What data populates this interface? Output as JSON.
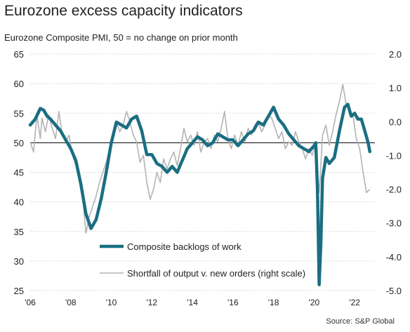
{
  "title": "Eurozone excess capacity indicators",
  "subtitle": "Eurozone Composite PMI, 50 = no change on prior month",
  "source": "Source: S&P Global",
  "colors": {
    "backlogs": "#1a6e82",
    "shortfall": "#b3b3b3",
    "grid": "#d9d9d9",
    "refline": "#000000"
  },
  "chart_data": {
    "type": "line",
    "x_axis": {
      "min": "2006-01",
      "max": "2023-01",
      "ticks": [
        "'06",
        "'08",
        "'10",
        "'12",
        "'14",
        "'16",
        "'18",
        "'20",
        "'22"
      ],
      "tick_years": [
        2006,
        2008,
        2010,
        2012,
        2014,
        2016,
        2018,
        2020,
        2022
      ]
    },
    "y_left": {
      "min": 25,
      "max": 65,
      "ticks": [
        25,
        30,
        35,
        40,
        45,
        50,
        55,
        60,
        65
      ]
    },
    "y_right": {
      "min": -5.0,
      "max": 2.0,
      "ticks": [
        "-5.0",
        "-4.0",
        "-3.0",
        "-2.0",
        "-1.0",
        "0.0",
        "1.0",
        "2.0"
      ]
    },
    "reference_line": 50,
    "grid": "horizontal-dotted",
    "legend_position": "bottom-left-inside",
    "series": [
      {
        "name": "Composite backlogs of work",
        "axis": "left",
        "points": [
          [
            "2006-01",
            53.0
          ],
          [
            "2006-04",
            54.0
          ],
          [
            "2006-07",
            55.8
          ],
          [
            "2006-09",
            55.5
          ],
          [
            "2006-11",
            54.5
          ],
          [
            "2007-01",
            54.0
          ],
          [
            "2007-04",
            53.0
          ],
          [
            "2007-07",
            52.0
          ],
          [
            "2007-10",
            50.5
          ],
          [
            "2008-01",
            49.0
          ],
          [
            "2008-04",
            47.0
          ],
          [
            "2008-07",
            43.0
          ],
          [
            "2008-10",
            38.0
          ],
          [
            "2009-01",
            35.5
          ],
          [
            "2009-04",
            37.0
          ],
          [
            "2009-07",
            40.5
          ],
          [
            "2009-10",
            45.0
          ],
          [
            "2010-01",
            50.0
          ],
          [
            "2010-04",
            53.5
          ],
          [
            "2010-07",
            53.0
          ],
          [
            "2010-10",
            52.5
          ],
          [
            "2011-01",
            54.0
          ],
          [
            "2011-04",
            54.5
          ],
          [
            "2011-07",
            52.0
          ],
          [
            "2011-10",
            48.0
          ],
          [
            "2012-01",
            48.0
          ],
          [
            "2012-04",
            46.5
          ],
          [
            "2012-07",
            46.0
          ],
          [
            "2012-10",
            45.0
          ],
          [
            "2013-01",
            46.0
          ],
          [
            "2013-04",
            45.0
          ],
          [
            "2013-07",
            47.0
          ],
          [
            "2013-10",
            49.0
          ],
          [
            "2014-01",
            50.0
          ],
          [
            "2014-04",
            51.0
          ],
          [
            "2014-07",
            50.5
          ],
          [
            "2014-10",
            49.5
          ],
          [
            "2015-01",
            50.0
          ],
          [
            "2015-04",
            51.5
          ],
          [
            "2015-07",
            51.0
          ],
          [
            "2015-10",
            50.5
          ],
          [
            "2016-01",
            50.5
          ],
          [
            "2016-04",
            49.5
          ],
          [
            "2016-07",
            50.5
          ],
          [
            "2016-10",
            51.5
          ],
          [
            "2017-01",
            52.0
          ],
          [
            "2017-04",
            53.5
          ],
          [
            "2017-07",
            53.0
          ],
          [
            "2017-10",
            54.5
          ],
          [
            "2018-01",
            56.0
          ],
          [
            "2018-04",
            54.0
          ],
          [
            "2018-07",
            53.0
          ],
          [
            "2018-10",
            51.5
          ],
          [
            "2019-01",
            50.5
          ],
          [
            "2019-04",
            49.5
          ],
          [
            "2019-07",
            49.0
          ],
          [
            "2019-10",
            48.5
          ],
          [
            "2020-01",
            49.5
          ],
          [
            "2020-02",
            50.0
          ],
          [
            "2020-03",
            42.0
          ],
          [
            "2020-04",
            26.0
          ],
          [
            "2020-05",
            33.0
          ],
          [
            "2020-06",
            44.0
          ],
          [
            "2020-08",
            47.5
          ],
          [
            "2020-10",
            46.5
          ],
          [
            "2021-01",
            47.5
          ],
          [
            "2021-04",
            52.0
          ],
          [
            "2021-07",
            56.0
          ],
          [
            "2021-09",
            56.5
          ],
          [
            "2021-11",
            54.5
          ],
          [
            "2022-01",
            55.0
          ],
          [
            "2022-03",
            54.0
          ],
          [
            "2022-05",
            54.0
          ],
          [
            "2022-07",
            52.0
          ],
          [
            "2022-09",
            50.0
          ],
          [
            "2022-10",
            48.5
          ]
        ]
      },
      {
        "name": "Shortfall of output v. new orders (right scale)",
        "axis": "right",
        "points": [
          [
            "2006-01",
            -0.6
          ],
          [
            "2006-03",
            -0.9
          ],
          [
            "2006-05",
            0.2
          ],
          [
            "2006-07",
            -0.5
          ],
          [
            "2006-08",
            0.1
          ],
          [
            "2006-10",
            -0.3
          ],
          [
            "2006-12",
            0.2
          ],
          [
            "2007-02",
            -0.2
          ],
          [
            "2007-04",
            -0.5
          ],
          [
            "2007-06",
            0.3
          ],
          [
            "2007-08",
            -0.4
          ],
          [
            "2007-10",
            -0.6
          ],
          [
            "2007-12",
            -0.4
          ],
          [
            "2008-02",
            -1.0
          ],
          [
            "2008-04",
            -1.3
          ],
          [
            "2008-06",
            -1.5
          ],
          [
            "2008-08",
            -2.2
          ],
          [
            "2008-10",
            -3.3
          ],
          [
            "2008-12",
            -2.8
          ],
          [
            "2009-02",
            -2.5
          ],
          [
            "2009-04",
            -2.2
          ],
          [
            "2009-06",
            -1.8
          ],
          [
            "2009-08",
            -1.5
          ],
          [
            "2009-10",
            -1.2
          ],
          [
            "2009-12",
            -0.8
          ],
          [
            "2010-02",
            -0.4
          ],
          [
            "2010-04",
            0.0
          ],
          [
            "2010-06",
            -0.3
          ],
          [
            "2010-08",
            -0.1
          ],
          [
            "2010-10",
            0.3
          ],
          [
            "2010-12",
            0.0
          ],
          [
            "2011-02",
            -0.4
          ],
          [
            "2011-04",
            -0.6
          ],
          [
            "2011-06",
            -1.2
          ],
          [
            "2011-08",
            -1.0
          ],
          [
            "2011-10",
            -1.8
          ],
          [
            "2011-12",
            -2.3
          ],
          [
            "2012-02",
            -2.0
          ],
          [
            "2012-04",
            -1.5
          ],
          [
            "2012-06",
            -1.8
          ],
          [
            "2012-08",
            -1.1
          ],
          [
            "2012-10",
            -1.4
          ],
          [
            "2012-12",
            -1.1
          ],
          [
            "2013-02",
            -0.9
          ],
          [
            "2013-04",
            -1.3
          ],
          [
            "2013-06",
            -0.8
          ],
          [
            "2013-08",
            -0.2
          ],
          [
            "2013-10",
            -0.6
          ],
          [
            "2013-12",
            -0.4
          ],
          [
            "2014-02",
            -0.7
          ],
          [
            "2014-04",
            -0.3
          ],
          [
            "2014-06",
            -0.9
          ],
          [
            "2014-08",
            -0.6
          ],
          [
            "2014-10",
            -0.5
          ],
          [
            "2014-12",
            -0.8
          ],
          [
            "2015-02",
            -0.4
          ],
          [
            "2015-04",
            -0.6
          ],
          [
            "2015-06",
            -0.2
          ],
          [
            "2015-08",
            0.3
          ],
          [
            "2015-10",
            -0.5
          ],
          [
            "2015-12",
            -0.8
          ],
          [
            "2016-02",
            -0.4
          ],
          [
            "2016-04",
            -0.7
          ],
          [
            "2016-06",
            -0.3
          ],
          [
            "2016-08",
            -0.6
          ],
          [
            "2016-10",
            -0.2
          ],
          [
            "2016-12",
            -0.4
          ],
          [
            "2017-02",
            -0.1
          ],
          [
            "2017-04",
            0.0
          ],
          [
            "2017-06",
            -0.3
          ],
          [
            "2017-08",
            -0.1
          ],
          [
            "2017-10",
            0.2
          ],
          [
            "2017-12",
            0.1
          ],
          [
            "2018-02",
            -0.2
          ],
          [
            "2018-04",
            -0.5
          ],
          [
            "2018-06",
            -0.3
          ],
          [
            "2018-08",
            -0.8
          ],
          [
            "2018-10",
            -0.6
          ],
          [
            "2018-12",
            -0.7
          ],
          [
            "2019-02",
            -0.3
          ],
          [
            "2019-04",
            -0.6
          ],
          [
            "2019-06",
            -0.8
          ],
          [
            "2019-08",
            -1.1
          ],
          [
            "2019-10",
            -0.8
          ],
          [
            "2019-12",
            -1.0
          ],
          [
            "2020-02",
            -0.6
          ],
          [
            "2020-03",
            -1.5
          ],
          [
            "2020-04",
            -2.1
          ],
          [
            "2020-05",
            -1.3
          ],
          [
            "2020-06",
            -0.4
          ],
          [
            "2020-08",
            -0.1
          ],
          [
            "2020-10",
            -0.7
          ],
          [
            "2020-12",
            -0.3
          ],
          [
            "2021-02",
            0.2
          ],
          [
            "2021-04",
            0.6
          ],
          [
            "2021-06",
            1.1
          ],
          [
            "2021-08",
            0.5
          ],
          [
            "2021-10",
            0.3
          ],
          [
            "2021-12",
            0.2
          ],
          [
            "2022-02",
            -0.5
          ],
          [
            "2022-04",
            -0.8
          ],
          [
            "2022-06",
            -1.5
          ],
          [
            "2022-08",
            -2.1
          ],
          [
            "2022-10",
            -2.0
          ]
        ]
      }
    ]
  }
}
